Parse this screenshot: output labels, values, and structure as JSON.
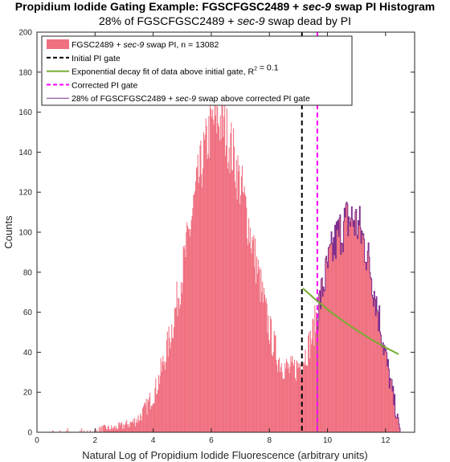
{
  "chart_data": {
    "type": "bar",
    "title": "Propidium Iodide Gating Example: FGSCFGSC2489 + sec-9 swap PI Histogram",
    "title_parts": {
      "before": "Propidium Iodide Gating Example: FGSCFGSC2489 + ",
      "italic": "sec-9",
      "after": " swap PI Histogram"
    },
    "subtitle": "28% of FGSCFGSC2489 + sec-9 swap dead by PI",
    "subtitle_parts": {
      "before": "28% of FGSCFGSC2489 + ",
      "italic": "sec-9",
      "after": " swap dead by PI"
    },
    "xlabel": "Natural Log of Propidium Iodide Fluorescence (arbitrary units)",
    "ylabel": "Counts",
    "xlim": [
      0,
      13
    ],
    "ylim": [
      0,
      200
    ],
    "xticks": [
      0,
      2,
      4,
      6,
      8,
      10,
      12
    ],
    "yticks": [
      0,
      20,
      40,
      60,
      80,
      100,
      120,
      140,
      160,
      180,
      200
    ],
    "grid": false,
    "legend_position": "top",
    "legend": [
      {
        "kind": "patch",
        "color": "#f07080",
        "label_parts": {
          "before": "FGSC2489 + ",
          "italic": "sec-9",
          "after": " swap PI, n = 13082"
        }
      },
      {
        "kind": "dashed",
        "color": "#000000",
        "label_parts": {
          "before": "Initial PI gate",
          "italic": "",
          "after": ""
        }
      },
      {
        "kind": "solid",
        "color": "#77ac30",
        "label_parts": {
          "before": "Exponential decay fit of data above initial gate, R",
          "sup": "2",
          "italic": "",
          "after": " = 0.1"
        }
      },
      {
        "kind": "dashed",
        "color": "#ff00ff",
        "label_parts": {
          "before": "Corrected PI gate",
          "italic": "",
          "after": ""
        }
      },
      {
        "kind": "solid-thin",
        "color": "#7e2f8e",
        "label_parts": {
          "before": "28% of FGSCFGSC2489 + ",
          "italic": "sec-9",
          "after": " swap above corrected PI gate"
        }
      }
    ],
    "colors": {
      "histogram": "#f07080",
      "initial_gate": "#000000",
      "fit": "#77ac30",
      "corrected_gate": "#ff00ff",
      "outline": "#7e2f8e"
    },
    "initial_gate_x": 9.12,
    "corrected_gate_x": 9.65,
    "fit": {
      "x_start": 9.15,
      "x_end": 12.45,
      "y_start": 72,
      "y_end": 39
    },
    "histogram": {
      "bin_start": 0.5,
      "bin_width": 0.025,
      "counts_anchors": [
        [
          0.5,
          0
        ],
        [
          0.55,
          2
        ],
        [
          0.6,
          0
        ],
        [
          1.0,
          0
        ],
        [
          1.05,
          1
        ],
        [
          1.1,
          0
        ],
        [
          1.5,
          0
        ],
        [
          1.55,
          1
        ],
        [
          1.6,
          0
        ],
        [
          2.0,
          1
        ],
        [
          2.3,
          2
        ],
        [
          2.6,
          2
        ],
        [
          2.9,
          3
        ],
        [
          3.1,
          4
        ],
        [
          3.3,
          5
        ],
        [
          3.5,
          7
        ],
        [
          3.7,
          11
        ],
        [
          3.9,
          16
        ],
        [
          4.1,
          22
        ],
        [
          4.3,
          32
        ],
        [
          4.5,
          43
        ],
        [
          4.7,
          56
        ],
        [
          4.9,
          72
        ],
        [
          5.1,
          88
        ],
        [
          5.3,
          105
        ],
        [
          5.5,
          122
        ],
        [
          5.7,
          136
        ],
        [
          5.9,
          148
        ],
        [
          6.05,
          155
        ],
        [
          6.2,
          157
        ],
        [
          6.35,
          155
        ],
        [
          6.5,
          150
        ],
        [
          6.7,
          142
        ],
        [
          6.9,
          130
        ],
        [
          7.1,
          118
        ],
        [
          7.3,
          103
        ],
        [
          7.5,
          88
        ],
        [
          7.7,
          73
        ],
        [
          7.9,
          58
        ],
        [
          8.1,
          46
        ],
        [
          8.3,
          37
        ],
        [
          8.5,
          33
        ],
        [
          8.7,
          31
        ],
        [
          8.9,
          32
        ],
        [
          9.1,
          35
        ],
        [
          9.3,
          41
        ],
        [
          9.5,
          50
        ],
        [
          9.7,
          63
        ],
        [
          9.9,
          76
        ],
        [
          10.1,
          87
        ],
        [
          10.3,
          96
        ],
        [
          10.5,
          102
        ],
        [
          10.7,
          106
        ],
        [
          10.9,
          106
        ],
        [
          11.1,
          102
        ],
        [
          11.3,
          93
        ],
        [
          11.5,
          80
        ],
        [
          11.7,
          64
        ],
        [
          11.9,
          47
        ],
        [
          12.1,
          30
        ],
        [
          12.3,
          15
        ],
        [
          12.45,
          4
        ],
        [
          12.5,
          0
        ]
      ]
    }
  }
}
